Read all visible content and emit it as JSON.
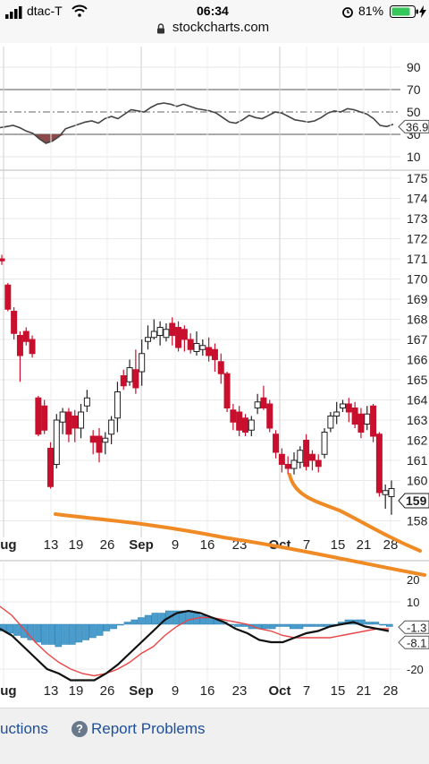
{
  "status": {
    "carrier": "dtac-T",
    "time": "06:34",
    "battery": "81%",
    "url": "stockcharts.com"
  },
  "rsi": {
    "ticks": [
      "90",
      "70",
      "50",
      "30",
      "10"
    ],
    "value_label": "36.9",
    "line": [
      36,
      37,
      38,
      36,
      33,
      31,
      26,
      22,
      24,
      28,
      35,
      37,
      39,
      41,
      42,
      40,
      44,
      46,
      44,
      48,
      52,
      51,
      50,
      54,
      57,
      58,
      57,
      55,
      57,
      55,
      53,
      52,
      51,
      49,
      45,
      41,
      40,
      43,
      47,
      45,
      44,
      47,
      50,
      49,
      46,
      43,
      42,
      41,
      42,
      45,
      49,
      51,
      50,
      53,
      52,
      50,
      48,
      44,
      38,
      37,
      39
    ]
  },
  "price": {
    "ticks": [
      "175",
      "174",
      "173",
      "172",
      "171",
      "170",
      "169",
      "168",
      "167",
      "166",
      "165",
      "164",
      "163",
      "162",
      "161",
      "160",
      "159",
      "158"
    ],
    "value_label": "159",
    "candles": [
      [
        171.0,
        170.9,
        171.2,
        170.7
      ],
      [
        169.7,
        168.5,
        169.8,
        168.4
      ],
      [
        168.4,
        167.3,
        168.6,
        167.0
      ],
      [
        167.2,
        166.2,
        167.4,
        164.9
      ],
      [
        167.4,
        166.9,
        167.6,
        166.7
      ],
      [
        167.0,
        166.3,
        167.2,
        166.1
      ],
      [
        164.1,
        162.3,
        164.2,
        162.2
      ],
      [
        163.7,
        162.5,
        164.0,
        162.3
      ],
      [
        161.6,
        159.7,
        161.9,
        159.6
      ],
      [
        160.8,
        163.0,
        163.3,
        160.6
      ],
      [
        162.9,
        163.4,
        163.6,
        162.3
      ],
      [
        163.4,
        162.3,
        163.6,
        161.9
      ],
      [
        163.2,
        162.6,
        163.5,
        161.9
      ],
      [
        162.6,
        163.4,
        163.8,
        162.1
      ],
      [
        163.7,
        164.1,
        164.5,
        163.4
      ],
      [
        162.2,
        161.9,
        162.5,
        161.3
      ],
      [
        162.2,
        161.4,
        162.6,
        160.9
      ],
      [
        161.9,
        162.1,
        162.4,
        161.3
      ],
      [
        162.3,
        163.0,
        163.2,
        161.8
      ],
      [
        163.1,
        164.4,
        164.9,
        162.4
      ],
      [
        165.2,
        164.7,
        165.5,
        164.5
      ],
      [
        164.9,
        165.6,
        166.0,
        164.7
      ],
      [
        165.5,
        164.6,
        166.5,
        164.3
      ],
      [
        165.4,
        166.3,
        167.0,
        164.7
      ],
      [
        166.9,
        167.1,
        167.7,
        166.5
      ],
      [
        167.1,
        167.4,
        168.0,
        167.0
      ],
      [
        167.2,
        167.6,
        167.9,
        166.7
      ],
      [
        167.1,
        167.5,
        167.8,
        166.9
      ],
      [
        167.8,
        167.2,
        168.1,
        166.7
      ],
      [
        167.6,
        166.6,
        167.9,
        166.4
      ],
      [
        167.5,
        167.0,
        167.7,
        166.4
      ],
      [
        167.0,
        166.5,
        167.3,
        166.3
      ],
      [
        166.4,
        166.8,
        167.4,
        166.2
      ],
      [
        166.5,
        166.7,
        167.0,
        166.2
      ],
      [
        166.6,
        166.2,
        167.1,
        165.9
      ],
      [
        166.5,
        166.0,
        166.8,
        165.4
      ],
      [
        165.9,
        165.3,
        166.3,
        164.8
      ],
      [
        165.3,
        163.6,
        165.4,
        163.4
      ],
      [
        163.5,
        162.9,
        163.8,
        162.5
      ],
      [
        163.4,
        162.5,
        163.7,
        162.2
      ],
      [
        163.1,
        162.4,
        163.3,
        162.2
      ],
      [
        162.5,
        163.0,
        163.2,
        162.2
      ],
      [
        163.6,
        163.9,
        164.3,
        163.3
      ],
      [
        164.1,
        163.6,
        164.7,
        163.5
      ],
      [
        163.8,
        162.6,
        164.0,
        162.4
      ],
      [
        162.3,
        161.4,
        162.5,
        161.1
      ],
      [
        161.3,
        160.8,
        161.6,
        160.4
      ],
      [
        160.8,
        160.6,
        161.2,
        160.3
      ],
      [
        160.6,
        161.0,
        161.4,
        160.3
      ],
      [
        160.9,
        161.5,
        161.7,
        160.6
      ],
      [
        162.0,
        160.7,
        162.3,
        160.5
      ],
      [
        161.3,
        161.0,
        161.5,
        160.5
      ],
      [
        161.0,
        160.7,
        161.3,
        160.4
      ],
      [
        161.3,
        162.4,
        162.6,
        161.1
      ],
      [
        162.6,
        163.2,
        163.4,
        162.4
      ],
      [
        163.2,
        163.4,
        163.9,
        162.8
      ],
      [
        163.6,
        163.8,
        164.0,
        163.4
      ],
      [
        163.8,
        163.4,
        164.1,
        162.9
      ],
      [
        163.6,
        162.8,
        163.9,
        162.6
      ],
      [
        163.3,
        162.4,
        163.6,
        162.1
      ],
      [
        162.8,
        163.3,
        163.7,
        162.5
      ],
      [
        163.7,
        162.2,
        163.8,
        161.9
      ],
      [
        162.3,
        159.4,
        162.4,
        159.2
      ],
      [
        159.3,
        159.5,
        159.8,
        158.6
      ],
      [
        159.2,
        159.6,
        160.0,
        158.3
      ]
    ]
  },
  "xaxis": [
    "Aug",
    "13",
    "19",
    "26",
    "Sep",
    "9",
    "16",
    "23",
    "Oct",
    "7",
    "15",
    "21",
    "28"
  ],
  "macd": {
    "ticks": [
      "20",
      "10",
      "-1.3",
      "-8.1",
      "-20"
    ],
    "hist": [
      -3,
      -4,
      -5,
      -6,
      -7,
      -8,
      -9,
      -9,
      -10,
      -9,
      -9,
      -8,
      -7,
      -6,
      -5,
      -3,
      -2,
      0,
      1,
      2,
      3,
      4,
      5,
      5,
      6,
      6,
      6,
      6,
      5,
      4,
      3,
      2,
      1,
      0,
      -1,
      -1,
      -2,
      -2,
      -2,
      -2,
      -1,
      -1,
      -2,
      -2,
      -1,
      -1,
      -1,
      -1,
      0,
      1,
      2,
      2,
      2,
      1,
      1,
      0,
      -1
    ],
    "macd_line": [
      -2,
      -5,
      -10,
      -15,
      -20,
      -22,
      -25,
      -25,
      -25,
      -22,
      -18,
      -13,
      -8,
      -3,
      2,
      5,
      6,
      5,
      3,
      1,
      -2,
      -4,
      -7,
      -8,
      -8,
      -6,
      -4,
      -3,
      -1,
      0,
      1,
      -1,
      -2,
      -3
    ],
    "signal_line": [
      8,
      4,
      -2,
      -8,
      -13,
      -17,
      -20,
      -22,
      -23,
      -22,
      -20,
      -17,
      -13,
      -10,
      -5,
      -1,
      2,
      3,
      3,
      2,
      1,
      0,
      -2,
      -3,
      -5,
      -6,
      -6,
      -6,
      -6,
      -5,
      -4,
      -3,
      -2,
      -2
    ]
  },
  "footer": {
    "instructions": "uctions",
    "report": "Report Problems"
  }
}
